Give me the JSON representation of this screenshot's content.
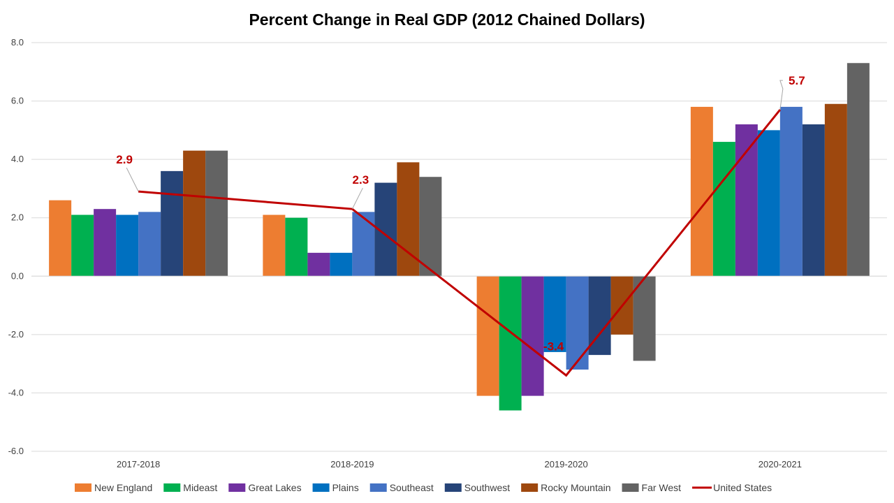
{
  "chart_data": {
    "type": "bar",
    "title": "Percent Change in Real GDP (2012 Chained Dollars)",
    "xlabel": "",
    "ylabel": "",
    "ylim": [
      -6.0,
      8.0
    ],
    "yticks": [
      "8.0",
      "6.0",
      "4.0",
      "2.0",
      "0.0",
      "-2.0",
      "-4.0",
      "-6.0"
    ],
    "grid": true,
    "legend_position": "bottom",
    "categories": [
      "2017-2018",
      "2018-2019",
      "2019-2020",
      "2020-2021"
    ],
    "series": [
      {
        "name": "New England",
        "color": "#ED7D31",
        "values": [
          2.6,
          2.1,
          -4.1,
          5.8
        ]
      },
      {
        "name": "Mideast",
        "color": "#00B050",
        "values": [
          2.1,
          2.0,
          -4.6,
          4.6
        ]
      },
      {
        "name": "Great Lakes",
        "color": "#7030A0",
        "values": [
          2.3,
          0.8,
          -4.1,
          5.2
        ]
      },
      {
        "name": "Plains",
        "color": "#0070C0",
        "values": [
          2.1,
          0.8,
          -2.6,
          5.0
        ]
      },
      {
        "name": "Southeast",
        "color": "#4472C4",
        "values": [
          2.2,
          2.2,
          -3.2,
          5.8
        ]
      },
      {
        "name": "Southwest",
        "color": "#264478",
        "values": [
          3.6,
          3.2,
          -2.7,
          5.2
        ]
      },
      {
        "name": "Rocky Mountain",
        "color": "#9E480E",
        "values": [
          4.3,
          3.9,
          -2.0,
          5.9
        ]
      },
      {
        "name": "Far West",
        "color": "#636363",
        "values": [
          4.3,
          3.4,
          -2.9,
          7.3
        ]
      }
    ],
    "line_series": {
      "name": "United States",
      "color": "#C00000",
      "values": [
        2.9,
        2.3,
        -3.4,
        5.7
      ],
      "labels": [
        "2.9",
        "2.3",
        "-3.4",
        "5.7"
      ]
    }
  }
}
